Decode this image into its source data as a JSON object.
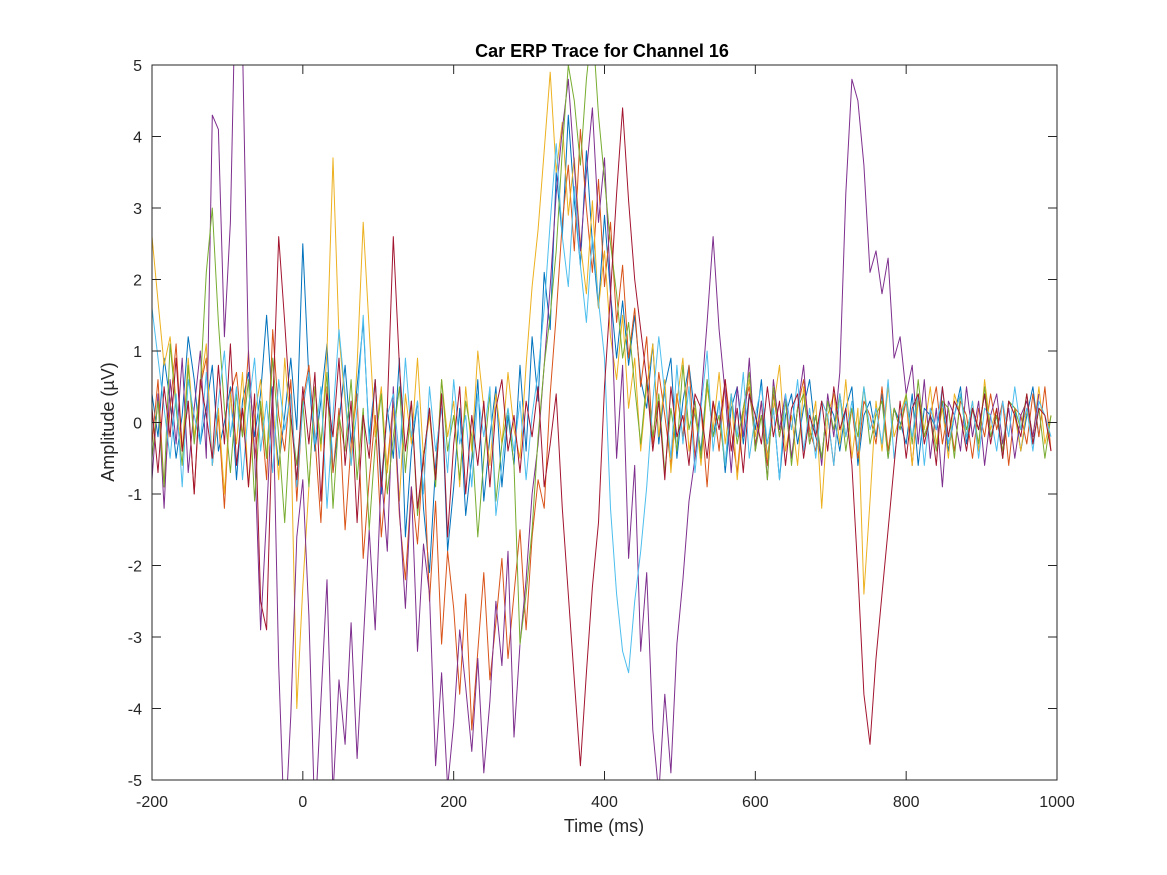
{
  "chart_data": {
    "type": "line",
    "title": "Car ERP Trace for Channel 16",
    "xlabel": "Time (ms)",
    "ylabel": "Amplitude (µV)",
    "xlim": [
      -200,
      1000
    ],
    "ylim": [
      -5,
      5
    ],
    "xticks": [
      -200,
      0,
      200,
      400,
      600,
      800,
      1000
    ],
    "yticks": [
      -5,
      -4,
      -3,
      -2,
      -1,
      0,
      1,
      2,
      3,
      4,
      5
    ],
    "grid": false,
    "legend": "none",
    "x_step_ms": 8,
    "colors": [
      "#0072BD",
      "#D95319",
      "#EDB120",
      "#7E2F8E",
      "#77AC30",
      "#4DBEEE",
      "#A2142F"
    ],
    "series": [
      {
        "color": "#0072BD",
        "values": [
          0.4,
          -0.2,
          0.9,
          0.3,
          -0.5,
          0.1,
          1.2,
          0.6,
          -0.3,
          0.2,
          0.8,
          -0.4,
          0.0,
          0.5,
          -0.8,
          0.3,
          0.7,
          -0.2,
          0.4,
          1.5,
          0.2,
          -0.6,
          0.1,
          0.9,
          -0.1,
          2.5,
          0.6,
          -0.4,
          0.3,
          1.1,
          -0.7,
          0.0,
          0.8,
          -0.3,
          0.5,
          1.4,
          -0.2,
          0.6,
          -1.0,
          0.2,
          -0.5,
          0.9,
          -1.6,
          -0.4,
          0.3,
          -1.2,
          -2.1,
          -0.6,
          0.4,
          -1.8,
          -0.9,
          0.2,
          -1.3,
          -0.5,
          0.6,
          -1.1,
          -0.2,
          0.5,
          -0.9,
          0.1,
          -0.6,
          0.8,
          -0.4,
          1.2,
          0.3,
          2.1,
          1.3,
          3.5,
          2.6,
          4.3,
          3.1,
          2.2,
          3.8,
          2.5,
          1.6,
          2.9,
          1.8,
          0.9,
          1.7,
          0.8,
          1.5,
          0.6,
          0.2,
          1.1,
          -0.3,
          0.5,
          0.9,
          -0.5,
          0.3,
          0.8,
          0.1,
          -0.4,
          0.6,
          -0.2,
          0.3,
          -0.7,
          0.2,
          0.5,
          -0.3,
          0.4,
          -0.1,
          0.6,
          -0.5,
          0.2,
          -0.8,
          0.1,
          0.4,
          -0.3,
          0.2,
          0.6,
          -0.2,
          -0.5,
          0.3,
          0.1,
          -0.4,
          0.2,
          0.5,
          -0.6,
          0.1,
          0.3,
          -0.2,
          0.4,
          -0.5,
          0.2,
          0.0,
          -0.3,
          0.4,
          -0.6,
          0.2,
          0.1,
          -0.1,
          0.3,
          -0.4,
          0.1,
          0.5,
          -0.3,
          0.2,
          -0.1,
          0.4,
          -0.2,
          0.1,
          -0.5,
          0.3,
          0.2,
          -0.4,
          0.1,
          0.5,
          -0.2
        ]
      },
      {
        "color": "#D95319",
        "values": [
          -0.3,
          0.6,
          -0.9,
          0.2,
          1.1,
          -0.4,
          0.3,
          -1.0,
          0.5,
          0.9,
          -0.6,
          0.1,
          -1.2,
          0.4,
          0.7,
          -0.2,
          1.0,
          -0.5,
          0.2,
          -0.8,
          1.3,
          0.1,
          -0.4,
          0.6,
          -1.1,
          0.3,
          0.8,
          -0.2,
          -1.4,
          0.5,
          -0.7,
          0.2,
          -1.5,
          -0.3,
          0.4,
          -1.9,
          -0.8,
          0.1,
          -1.6,
          -0.6,
          0.3,
          -1.3,
          -2.2,
          -0.9,
          -1.7,
          -0.4,
          -2.5,
          -1.1,
          -3.1,
          -1.8,
          -2.6,
          -3.8,
          -2.4,
          -4.3,
          -3.2,
          -2.1,
          -3.6,
          -2.8,
          -1.9,
          -3.3,
          -2.4,
          -1.5,
          -2.9,
          -1.6,
          -0.8,
          -1.2,
          0.4,
          1.5,
          2.8,
          3.6,
          2.4,
          4.1,
          3.0,
          2.1,
          3.4,
          1.9,
          2.8,
          1.4,
          2.2,
          0.9,
          1.6,
          0.5,
          1.2,
          -0.3,
          0.7,
          0.1,
          -0.6,
          0.4,
          -0.2,
          0.8,
          -0.5,
          0.2,
          -0.9,
          0.3,
          -0.4,
          0.6,
          -0.1,
          -0.7,
          0.2,
          0.5,
          -0.3,
          0.1,
          -0.6,
          0.4,
          -0.2,
          0.3,
          -0.5,
          0.2,
          0.6,
          -0.1,
          -0.4,
          0.3,
          0.1,
          -0.6,
          0.4,
          -0.2,
          0.2,
          -0.5,
          0.3,
          0.1,
          -0.3,
          0.5,
          -0.4,
          0.2,
          -0.1,
          0.3,
          -0.6,
          0.4,
          -0.2,
          0.1,
          0.5,
          -0.3,
          0.2,
          -0.4,
          0.3,
          0.1,
          -0.5,
          0.2,
          -0.2,
          0.4,
          -0.1,
          0.3,
          -0.6,
          0.2,
          0.1,
          -0.3,
          0.4,
          -0.2,
          0.5,
          -0.4
        ]
      },
      {
        "color": "#EDB120",
        "values": [
          2.6,
          1.7,
          0.8,
          1.2,
          0.3,
          -0.4,
          0.9,
          -0.2,
          0.5,
          1.1,
          -0.6,
          0.2,
          -1.0,
          0.4,
          -0.3,
          0.7,
          -0.9,
          0.1,
          0.6,
          -0.5,
          0.3,
          -0.8,
          0.9,
          -0.1,
          -4.0,
          -2.3,
          -0.9,
          0.5,
          -0.4,
          1.0,
          3.7,
          1.2,
          0.3,
          -0.6,
          0.8,
          2.8,
          1.3,
          -0.2,
          0.5,
          -0.7,
          0.2,
          -1.1,
          0.4,
          -0.3,
          0.9,
          -0.5,
          0.1,
          -0.8,
          0.6,
          -0.2,
          0.3,
          -0.9,
          0.5,
          -0.4,
          1.0,
          0.2,
          -0.6,
          0.4,
          -0.3,
          0.7,
          -0.1,
          -0.5,
          0.8,
          1.9,
          2.7,
          3.8,
          4.9,
          3.5,
          4.2,
          2.9,
          3.7,
          2.5,
          1.8,
          3.1,
          1.6,
          2.4,
          1.2,
          0.6,
          1.5,
          0.2,
          0.9,
          -0.4,
          0.5,
          1.1,
          -0.2,
          0.6,
          -0.7,
          0.3,
          0.9,
          -0.4,
          0.2,
          -0.6,
          0.5,
          -0.1,
          0.7,
          -0.3,
          0.4,
          -0.8,
          0.1,
          0.6,
          -0.2,
          0.3,
          -0.5,
          0.2,
          0.8,
          -0.4,
          0.1,
          -0.6,
          0.5,
          -0.2,
          0.3,
          -1.2,
          0.1,
          0.4,
          -0.3,
          0.6,
          -0.5,
          0.2,
          -2.4,
          -1.1,
          0.3,
          -0.4,
          0.5,
          -0.2,
          0.1,
          0.4,
          -0.6,
          0.3,
          -0.1,
          0.5,
          -0.3,
          0.2,
          -0.5,
          0.4,
          0.1,
          -0.2,
          0.3,
          -0.4,
          0.6,
          -0.1,
          0.2,
          -0.5,
          0.3,
          0.1,
          -0.4,
          0.2,
          -0.2,
          0.5,
          -0.3,
          0.1
        ]
      },
      {
        "color": "#7E2F8E",
        "values": [
          -0.8,
          0.4,
          -1.2,
          0.6,
          -0.3,
          0.9,
          -0.7,
          0.2,
          1.0,
          -0.5,
          4.3,
          4.1,
          1.2,
          2.8,
          6.8,
          5.3,
          0.9,
          -0.4,
          -2.9,
          -1.3,
          0.5,
          -3.4,
          -5.8,
          -4.1,
          -1.6,
          -0.8,
          -2.7,
          -5.6,
          -3.9,
          -2.2,
          -5.2,
          -3.6,
          -4.5,
          -2.8,
          -4.7,
          -3.1,
          -1.5,
          -2.9,
          -0.7,
          -1.8,
          0.5,
          -1.2,
          -2.6,
          -0.9,
          -3.2,
          -1.7,
          -2.4,
          -4.8,
          -3.5,
          -5.1,
          -4.2,
          -2.9,
          -3.7,
          -4.6,
          -3.3,
          -4.9,
          -3.9,
          -2.5,
          -3.4,
          -1.8,
          -4.4,
          -3.1,
          -2.2,
          -1.0,
          -0.3,
          0.8,
          1.9,
          3.2,
          4.1,
          4.8,
          3.6,
          2.4,
          3.5,
          4.4,
          2.8,
          3.7,
          1.9,
          -0.5,
          0.8,
          -1.9,
          -0.6,
          -3.2,
          -2.1,
          -4.3,
          -5.2,
          -3.8,
          -4.9,
          -3.1,
          -2.2,
          -1.1,
          -0.5,
          0.3,
          1.4,
          2.6,
          1.3,
          0.4,
          -0.7,
          0.5,
          -0.2,
          0.9,
          -0.4,
          0.3,
          -0.8,
          0.6,
          -0.1,
          0.4,
          -0.5,
          0.2,
          0.8,
          -0.3,
          0.1,
          -0.6,
          0.4,
          -0.2,
          0.7,
          3.2,
          4.8,
          4.5,
          3.6,
          2.1,
          2.4,
          1.8,
          2.3,
          0.9,
          1.2,
          0.4,
          0.8,
          -0.3,
          0.6,
          -0.5,
          0.2,
          -0.9,
          0.3,
          0.1,
          -0.4,
          0.5,
          -0.2,
          0.3,
          -0.6,
          0.1,
          0.4,
          -0.3,
          0.2,
          -0.5,
          0.1,
          0.3,
          -0.2,
          0.4
        ]
      },
      {
        "color": "#77AC30",
        "values": [
          -0.5,
          0.3,
          -0.9,
          1.1,
          0.2,
          -0.6,
          0.8,
          -0.3,
          0.5,
          2.1,
          3.0,
          1.4,
          0.2,
          -0.7,
          0.4,
          -0.2,
          0.6,
          -1.1,
          0.3,
          -0.5,
          0.9,
          -0.2,
          -1.4,
          0.1,
          -0.6,
          0.3,
          -0.9,
          0.5,
          -0.3,
          0.7,
          -1.2,
          0.1,
          -0.4,
          0.6,
          -0.8,
          0.2,
          -1.5,
          -0.3,
          0.4,
          -1.0,
          -0.2,
          0.5,
          -0.7,
          0.3,
          -1.3,
          -0.5,
          0.2,
          -0.9,
          0.6,
          -0.4,
          0.1,
          -0.8,
          0.3,
          -0.2,
          -1.6,
          -0.5,
          0.4,
          -1.1,
          -0.3,
          0.2,
          -0.6,
          -3.1,
          -2.4,
          -1.5,
          -0.2,
          0.8,
          1.5,
          2.4,
          3.8,
          5.0,
          4.5,
          3.6,
          4.8,
          5.6,
          4.3,
          3.4,
          2.5,
          1.8,
          0.9,
          1.4,
          0.5,
          -0.3,
          0.6,
          -0.2,
          0.4,
          -0.7,
          0.2,
          -0.4,
          0.8,
          -0.1,
          0.3,
          -0.5,
          0.6,
          -0.2,
          0.1,
          -0.6,
          0.4,
          -0.3,
          0.2,
          0.7,
          -0.4,
          0.1,
          -0.8,
          0.5,
          -0.2,
          0.3,
          -0.6,
          0.2,
          0.4,
          -0.3,
          0.1,
          -0.5,
          0.3,
          -0.1,
          0.4,
          -0.4,
          0.2,
          -0.2,
          0.5,
          -0.3,
          0.1,
          0.3,
          -0.5,
          0.2,
          -0.1,
          0.4,
          -0.3,
          0.6,
          -0.2,
          0.1,
          -0.4,
          0.3,
          0.2,
          -0.5,
          0.4,
          -0.1,
          0.2,
          -0.3,
          0.5,
          -0.2,
          0.1,
          -0.4,
          0.3,
          0.2,
          -0.1,
          0.4,
          -0.3,
          0.2,
          -0.5,
          0.1
        ]
      },
      {
        "color": "#4DBEEE",
        "values": [
          1.6,
          0.9,
          0.2,
          -0.5,
          0.4,
          -0.9,
          0.6,
          0.1,
          -0.3,
          0.7,
          -0.6,
          0.3,
          1.0,
          -0.2,
          0.5,
          -0.8,
          0.2,
          0.9,
          -0.4,
          0.3,
          -0.7,
          0.6,
          -0.1,
          0.4,
          -0.9,
          0.2,
          0.7,
          -0.3,
          0.5,
          -1.2,
          0.1,
          1.3,
          0.4,
          -0.6,
          0.2,
          1.5,
          -0.3,
          0.6,
          -0.8,
          0.1,
          0.4,
          -0.5,
          0.9,
          -0.2,
          0.3,
          -1.0,
          0.5,
          -0.4,
          0.2,
          -0.7,
          0.6,
          -0.3,
          0.1,
          -0.9,
          0.4,
          -0.2,
          0.5,
          -1.3,
          -0.6,
          0.2,
          -0.4,
          0.3,
          -0.8,
          0.1,
          0.7,
          1.6,
          2.8,
          3.9,
          2.6,
          1.9,
          3.3,
          2.2,
          1.4,
          2.6,
          1.7,
          0.9,
          -1.2,
          -2.4,
          -3.2,
          -3.5,
          -2.5,
          -1.8,
          -0.9,
          0.3,
          1.2,
          0.4,
          -0.5,
          0.8,
          -0.3,
          0.5,
          -0.7,
          0.2,
          1.0,
          -0.4,
          0.3,
          -0.6,
          0.4,
          -0.2,
          0.7,
          -0.5,
          0.1,
          0.5,
          -0.3,
          0.2,
          -0.8,
          0.4,
          -0.1,
          0.6,
          -0.4,
          0.2,
          -0.5,
          0.3,
          0.1,
          -0.6,
          0.4,
          -0.2,
          0.3,
          -0.4,
          0.5,
          -0.1,
          0.2,
          -0.3,
          0.6,
          -0.5,
          0.1,
          0.3,
          -0.2,
          0.4,
          -0.6,
          0.2,
          -0.1,
          0.5,
          -0.3,
          0.1,
          0.4,
          -0.2,
          0.3,
          -0.5,
          0.2,
          0.1,
          -0.4,
          0.3,
          -0.2,
          0.5,
          -0.1,
          0.2,
          -0.4,
          0.3,
          0.1,
          -0.2
        ]
      },
      {
        "color": "#A2142F",
        "values": [
          0.2,
          -0.7,
          0.5,
          -0.2,
          0.9,
          -0.4,
          0.3,
          -1.0,
          0.6,
          0.1,
          -0.5,
          0.8,
          -0.3,
          1.1,
          -0.6,
          0.2,
          -0.9,
          0.4,
          -2.5,
          -2.9,
          0.2,
          2.6,
          1.4,
          0.1,
          -0.8,
          0.5,
          -0.3,
          0.7,
          -1.1,
          0.4,
          -0.2,
          0.9,
          -0.6,
          0.3,
          -1.4,
          0.1,
          -0.5,
          0.6,
          -0.9,
          0.2,
          2.6,
          0.8,
          -0.4,
          0.3,
          -1.2,
          -0.5,
          0.2,
          -0.8,
          0.4,
          -1.6,
          -0.3,
          0.5,
          -1.0,
          0.1,
          -0.6,
          0.3,
          -0.9,
          0.2,
          0.6,
          -0.4,
          0.1,
          -0.7,
          0.3,
          -0.2,
          0.5,
          -0.9,
          -0.3,
          0.4,
          -1.2,
          -2.4,
          -3.6,
          -4.8,
          -3.5,
          -2.3,
          -1.4,
          0.5,
          1.8,
          3.2,
          4.4,
          3.1,
          2.0,
          1.3,
          0.6,
          -0.4,
          0.3,
          -0.8,
          0.5,
          -0.2,
          0.1,
          -0.6,
          0.4,
          0.2,
          -0.5,
          0.3,
          -0.1,
          0.6,
          -0.4,
          0.2,
          -0.7,
          0.4,
          0.1,
          -0.3,
          0.5,
          -0.2,
          0.3,
          -0.6,
          0.2,
          0.4,
          -0.5,
          0.1,
          -0.2,
          0.3,
          -0.4,
          0.5,
          -0.1,
          0.2,
          -0.6,
          -2.1,
          -3.8,
          -4.5,
          -3.3,
          -2.4,
          -1.5,
          -0.6,
          0.3,
          -0.5,
          0.2,
          0.4,
          -0.3,
          0.1,
          -0.6,
          0.5,
          -0.2,
          0.3,
          0.1,
          -0.4,
          0.2,
          -0.1,
          0.4,
          -0.3,
          0.2,
          -0.5,
          0.3,
          0.1,
          -0.2,
          0.4,
          -0.3,
          0.2,
          0.1,
          -0.4
        ]
      }
    ]
  }
}
